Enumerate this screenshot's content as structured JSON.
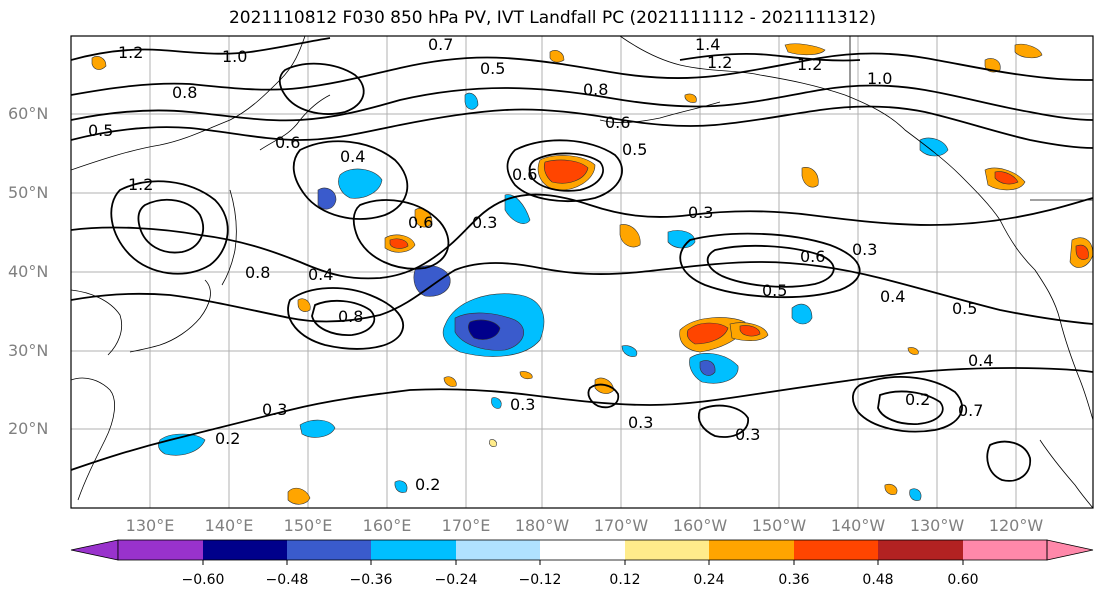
{
  "title": "2021110812 F030 850 hPa PV, IVT Landfall PC (2021111112 - 2021111312)",
  "lat_labels": [
    "60°N",
    "50°N",
    "40°N",
    "30°N",
    "20°N"
  ],
  "lon_labels": [
    "130°E",
    "140°E",
    "150°E",
    "160°E",
    "170°E",
    "180°W",
    "170°W",
    "160°W",
    "150°W",
    "140°W",
    "130°W",
    "120°W"
  ],
  "contour_labels": [
    "1.2",
    "1.0",
    "0.7",
    "0.5",
    "1.4",
    "1.2",
    "1.2",
    "1.0",
    "0.8",
    "0.6",
    "0.5",
    "0.6",
    "0.4",
    "0.6",
    "0.3",
    "0.6",
    "0.8",
    "0.4",
    "0.3",
    "0.6",
    "0.3",
    "0.5",
    "0.4",
    "0.5",
    "0.8",
    "0.3",
    "0.2",
    "0.3",
    "0.3",
    "0.3",
    "0.4",
    "0.2",
    "0.7",
    "0.2",
    "1.2",
    "0.8",
    "0.5"
  ],
  "colorbar": {
    "ticks": [
      "−0.60",
      "−0.48",
      "−0.36",
      "−0.24",
      "−0.12",
      "0.12",
      "0.24",
      "0.36",
      "0.48",
      "0.60"
    ],
    "colors": [
      "#9932cc",
      "#00008b",
      "#3a5bcc",
      "#00bfff",
      "#b0e2ff",
      "#ffffff",
      "#ffec8b",
      "#ffa500",
      "#ff4500",
      "#b22222",
      "#ff88aa"
    ]
  },
  "colors": {
    "pos_light": "#ffec8b",
    "pos_mid": "#ffa500",
    "pos_strong": "#ff4500",
    "neg_light": "#b0e2ff",
    "neg_mid": "#00bfff",
    "neg_strong": "#3a5bcc",
    "neg_deep": "#00008b",
    "grid": "#b0b0b0",
    "tick_text": "#808080"
  }
}
